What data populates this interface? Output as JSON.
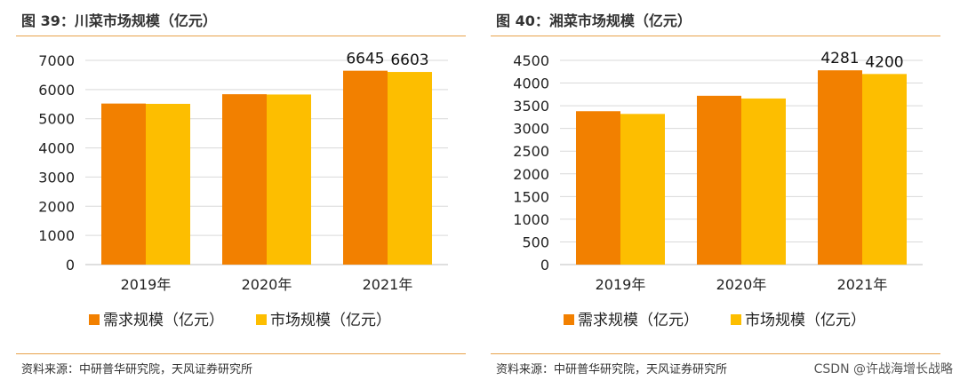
{
  "colors": {
    "demand": "#F28000",
    "market": "#FDBE00",
    "rule": "#E8A24A",
    "grid": "#D9D9D9",
    "axis": "#BFBFBF"
  },
  "watermark": "CSDN @许战海增长战略",
  "chart_data": [
    {
      "type": "bar",
      "title": "图 39：川菜市场规模（亿元）",
      "source": "资料来源：中研普华研究院，天风证券研究所",
      "categories": [
        "2019年",
        "2020年",
        "2021年"
      ],
      "series": [
        {
          "name": "需求规模（亿元）",
          "values": [
            5520,
            5840,
            6645
          ]
        },
        {
          "name": "市场规模（亿元）",
          "values": [
            5510,
            5830,
            6603
          ]
        }
      ],
      "data_labels": [
        {
          "series": 0,
          "index": 2,
          "text": "6645"
        },
        {
          "series": 1,
          "index": 2,
          "text": "6603"
        }
      ],
      "ylim": [
        0,
        7000
      ],
      "yticks": [
        0,
        1000,
        2000,
        3000,
        4000,
        5000,
        6000,
        7000
      ],
      "ytick_labels": [
        "0",
        "1000",
        "2000",
        "3000",
        "4000",
        "5000",
        "6000",
        "7000"
      ],
      "xlabel": "",
      "ylabel": "",
      "grid": true,
      "legend": "bottom-center"
    },
    {
      "type": "bar",
      "title": "图 40：湘菜市场规模（亿元）",
      "source": "资料来源：中研普华研究院，天风证券研究所",
      "categories": [
        "2019年",
        "2020年",
        "2021年"
      ],
      "series": [
        {
          "name": "需求规模（亿元）",
          "values": [
            3380,
            3720,
            4281
          ]
        },
        {
          "name": "市场规模（亿元）",
          "values": [
            3320,
            3660,
            4200
          ]
        }
      ],
      "data_labels": [
        {
          "series": 0,
          "index": 2,
          "text": "4281"
        },
        {
          "series": 1,
          "index": 2,
          "text": "4200"
        }
      ],
      "ylim": [
        0,
        4500
      ],
      "yticks": [
        0,
        500,
        1000,
        1500,
        2000,
        2500,
        3000,
        3500,
        4000,
        4500
      ],
      "ytick_labels": [
        "0",
        "500",
        "1000",
        "1500",
        "2000",
        "2500",
        "3000",
        "3500",
        "4000",
        "4500"
      ],
      "xlabel": "",
      "ylabel": "",
      "grid": true,
      "legend": "bottom-center"
    }
  ]
}
